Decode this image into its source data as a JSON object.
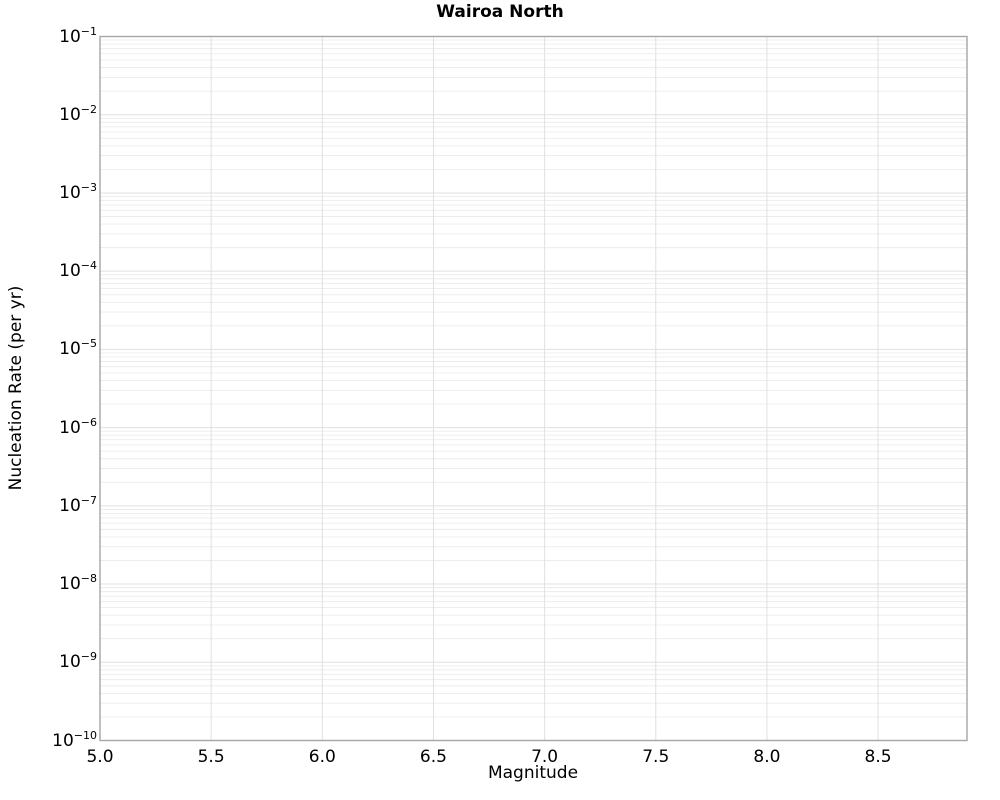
{
  "chart_data": {
    "type": "line",
    "title": "Wairoa North",
    "xlabel": "Magnitude",
    "ylabel": "Nucleation Rate (per yr)",
    "series": [],
    "x_axis": {
      "scale": "linear",
      "min": 5.0,
      "max": 8.9,
      "ticks": [
        5.0,
        5.5,
        6.0,
        6.5,
        7.0,
        7.5,
        8.0,
        8.5
      ],
      "tick_labels": [
        "5.0",
        "5.5",
        "6.0",
        "6.5",
        "7.0",
        "7.5",
        "8.0",
        "8.5"
      ]
    },
    "y_axis": {
      "scale": "log",
      "min": 1e-10,
      "max": 0.1,
      "tick_exponents": [
        -1,
        -2,
        -3,
        -4,
        -5,
        -6,
        -7,
        -8,
        -9,
        -10
      ],
      "tick_base": "10",
      "minus_sign": "−"
    },
    "grid": {
      "major": true,
      "minor": true,
      "major_color": "#e0e0e0",
      "minor_color": "#ececec"
    },
    "style": {
      "spine_color": "#a6a6a6",
      "background_color": "#ffffff",
      "text_color": "#000000"
    },
    "legend": {
      "visible": false
    }
  }
}
